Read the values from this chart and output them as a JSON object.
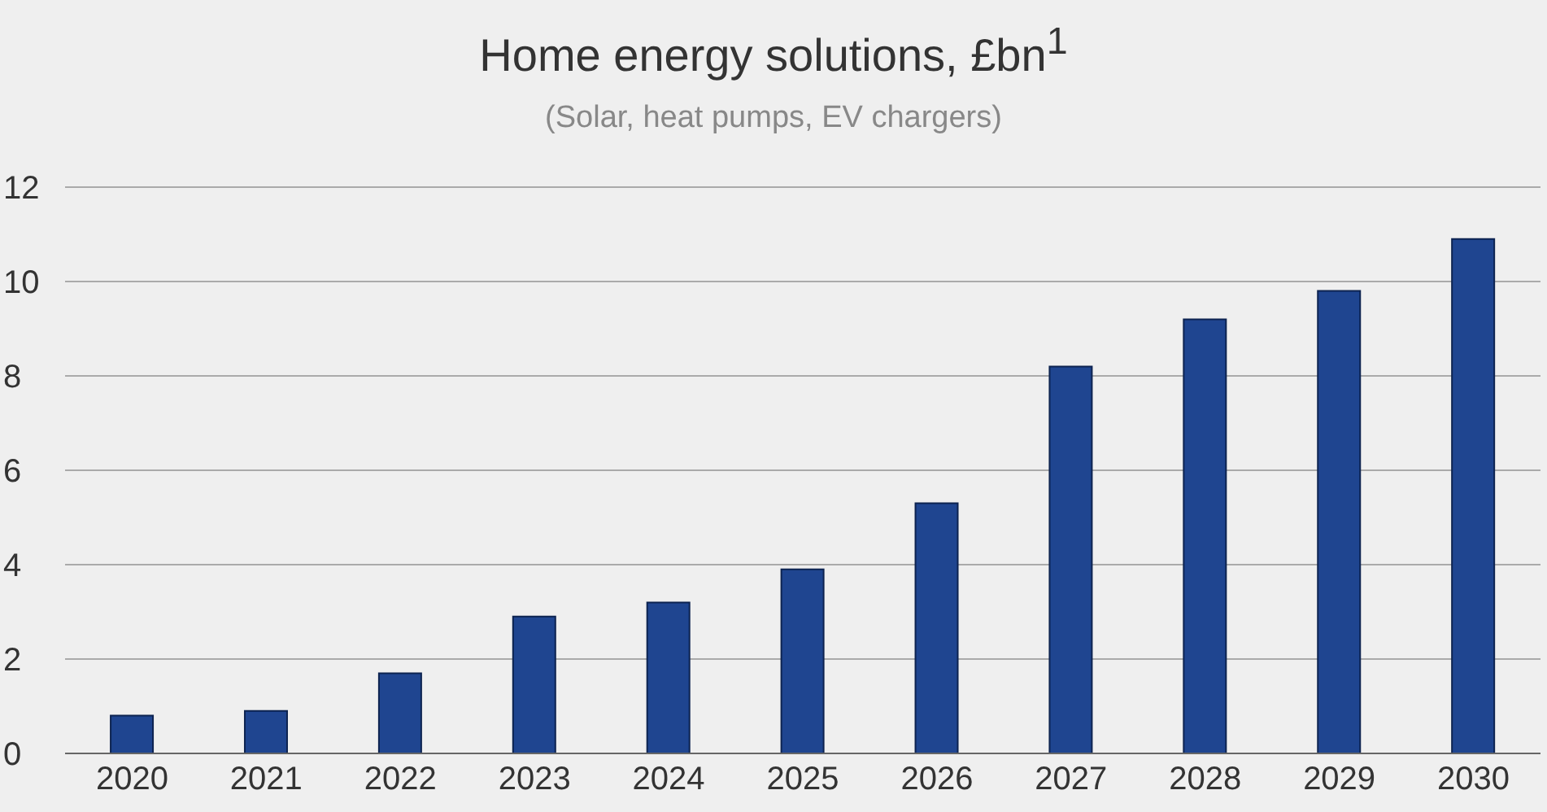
{
  "chart_data": {
    "type": "bar",
    "title": "Home energy solutions, £bn$^{1}$",
    "subtitle": "(Solar, heat pumps, EV chargers)",
    "categories": [
      "2020",
      "2021",
      "2022",
      "2023",
      "2024",
      "2025",
      "2026",
      "2027",
      "2028",
      "2029",
      "2030"
    ],
    "values": [
      0.8,
      0.9,
      1.7,
      2.9,
      3.2,
      3.9,
      5.3,
      8.2,
      9.2,
      9.8,
      10.9
    ],
    "color": "#1f4590",
    "ylim": [
      0,
      12
    ],
    "yticks": [
      0,
      2,
      4,
      6,
      8,
      10,
      12
    ],
    "grid": "y",
    "legend": false
  }
}
